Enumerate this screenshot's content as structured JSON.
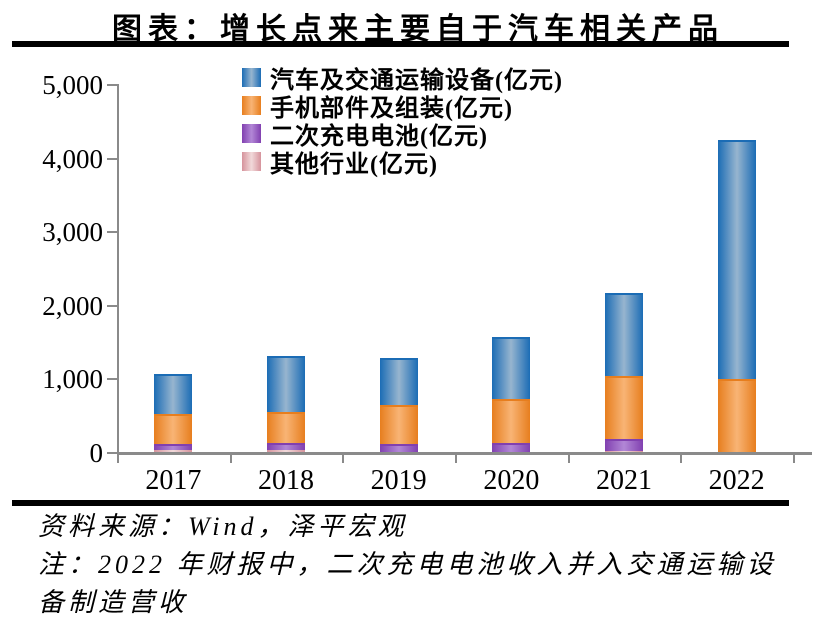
{
  "title": "图表：增长点来主要自于汽车相关产品",
  "footer": {
    "source": "资料来源：Wind，泽平宏观",
    "note": "注：2022 年财报中，二次充电电池收入并入交通运输设备制造营收"
  },
  "chart_data": {
    "type": "bar",
    "stacked": true,
    "title": "图表：增长点来主要自于汽车相关产品",
    "categories": [
      "2017",
      "2018",
      "2019",
      "2020",
      "2021",
      "2022"
    ],
    "series": [
      {
        "name": "汽车及交通运输设备(亿元)",
        "values": [
          545,
          760,
          633,
          840,
          1125,
          3247
        ],
        "color_edge": "#1b6cb5",
        "color_center": "#97b5cf"
      },
      {
        "name": "手机部件及组装(亿元)",
        "values": [
          405,
          422,
          534,
          600,
          865,
          988
        ],
        "color_edge": "#e77e1e",
        "color_center": "#f8b475"
      },
      {
        "name": "二次充电电池(亿元)",
        "values": [
          88,
          90,
          105,
          121,
          165,
          0
        ],
        "color_edge": "#8140b0",
        "color_center": "#b287d6"
      },
      {
        "name": "其他行业(亿元)",
        "values": [
          21,
          28,
          5,
          5,
          7,
          6
        ],
        "color_edge": "#d6939c",
        "color_center": "#f1d9da"
      }
    ],
    "stack_order_bottom_to_top": [
      "其他行业(亿元)",
      "二次充电电池(亿元)",
      "手机部件及组装(亿元)",
      "汽车及交通运输设备(亿元)"
    ],
    "ylim": [
      0,
      5000
    ],
    "yticks": [
      "0",
      "1,000",
      "2,000",
      "3,000",
      "4,000",
      "5,000"
    ],
    "xlabel": "",
    "ylabel": "",
    "grid": false,
    "legend_position": "top-center",
    "axis_color": "#8a8a8a"
  }
}
